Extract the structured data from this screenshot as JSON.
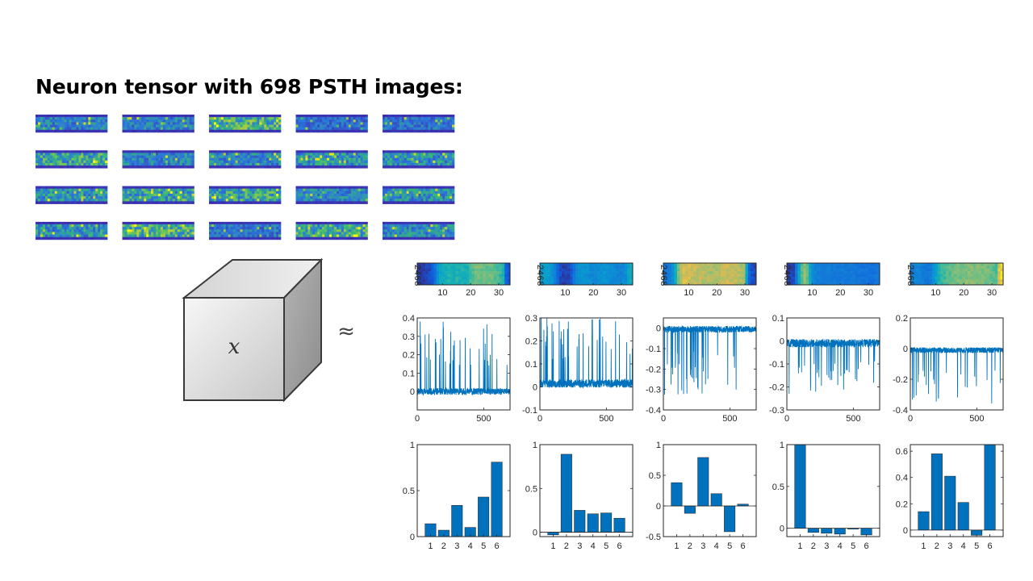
{
  "slide": {
    "title": "Neuron tensor with 698 PSTH images:",
    "tensor_symbol": "𝑥",
    "approx_symbol": "≈"
  },
  "psth_grid": {
    "rows": 4,
    "cols": 5
  },
  "colors": {
    "bar": "#0072BD",
    "line": "#0072BD",
    "axis": "#262626",
    "heatmap_low": "#3E26A8",
    "heatmap_mid": "#35B779",
    "heatmap_high": "#F9FB0E"
  },
  "chart_data": [
    {
      "component": 1,
      "heatmap": {
        "type": "heatmap",
        "yticks": [
          "2",
          "4",
          "6",
          "8"
        ],
        "xticks": [
          "10",
          "20",
          "30"
        ],
        "xlim": [
          1,
          34
        ],
        "column_profile": [
          0.05,
          0.05,
          0.06,
          0.08,
          0.1,
          0.15,
          0.28,
          0.45,
          0.55,
          0.58,
          0.6,
          0.62,
          0.62,
          0.62,
          0.63,
          0.62,
          0.62,
          0.6,
          0.62,
          0.68,
          0.72,
          0.75,
          0.75,
          0.75,
          0.74,
          0.74,
          0.75,
          0.75,
          0.72,
          0.7,
          0.66,
          0.62,
          0.2,
          0.12
        ]
      },
      "loading": {
        "type": "line",
        "xlim": [
          0,
          698
        ],
        "ylim": [
          -0.1,
          0.4
        ],
        "xticks": [
          "0",
          "500"
        ],
        "yticks": [
          "0",
          "0.1",
          "0.2",
          "0.3",
          "0.4"
        ],
        "baseline": 0.0,
        "noise": 0.018,
        "spike_dir": 1,
        "spike_max": 0.38,
        "spike_count": 38,
        "seed": 11
      },
      "weights": {
        "type": "bar",
        "categories": [
          "1",
          "2",
          "3",
          "4",
          "5",
          "6"
        ],
        "values": [
          0.14,
          0.07,
          0.34,
          0.1,
          0.43,
          0.81
        ],
        "ylim": [
          0,
          1
        ],
        "yticks": [
          "0",
          "0.5",
          "1"
        ]
      }
    },
    {
      "component": 2,
      "heatmap": {
        "type": "heatmap",
        "yticks": [
          "2",
          "4",
          "6",
          "8"
        ],
        "xticks": [
          "10",
          "20",
          "30"
        ],
        "xlim": [
          1,
          34
        ],
        "column_profile": [
          0.5,
          0.52,
          0.5,
          0.48,
          0.45,
          0.35,
          0.22,
          0.1,
          0.06,
          0.06,
          0.08,
          0.14,
          0.28,
          0.4,
          0.45,
          0.46,
          0.45,
          0.44,
          0.42,
          0.4,
          0.4,
          0.42,
          0.44,
          0.46,
          0.45,
          0.44,
          0.42,
          0.4,
          0.38,
          0.38,
          0.4,
          0.45,
          0.55,
          0.58
        ]
      },
      "loading": {
        "type": "line",
        "xlim": [
          0,
          698
        ],
        "ylim": [
          -0.1,
          0.3
        ],
        "xticks": [
          "0",
          "500"
        ],
        "yticks": [
          "-0.1",
          "0",
          "0.1",
          "0.2",
          "0.3"
        ],
        "baseline": 0.015,
        "noise": 0.018,
        "spike_dir": 1,
        "spike_max": 0.29,
        "spike_count": 44,
        "seed": 23
      },
      "weights": {
        "type": "bar",
        "categories": [
          "1",
          "2",
          "3",
          "4",
          "5",
          "6"
        ],
        "values": [
          -0.03,
          0.89,
          0.25,
          0.21,
          0.22,
          0.16
        ],
        "ylim": [
          -0.05,
          1
        ],
        "yticks": [
          "0",
          "0.5",
          "1"
        ]
      }
    },
    {
      "component": 3,
      "heatmap": {
        "type": "heatmap",
        "yticks": [
          "2",
          "4",
          "6",
          "8"
        ],
        "xticks": [
          "10",
          "20",
          "30"
        ],
        "xlim": [
          1,
          34
        ],
        "column_profile": [
          0.3,
          0.32,
          0.35,
          0.45,
          0.6,
          0.75,
          0.85,
          0.88,
          0.88,
          0.87,
          0.86,
          0.86,
          0.85,
          0.85,
          0.84,
          0.84,
          0.83,
          0.82,
          0.82,
          0.83,
          0.84,
          0.85,
          0.86,
          0.86,
          0.86,
          0.85,
          0.85,
          0.85,
          0.84,
          0.83,
          0.55,
          0.2,
          0.1,
          0.08
        ]
      },
      "loading": {
        "type": "line",
        "xlim": [
          0,
          698
        ],
        "ylim": [
          -0.4,
          0.05
        ],
        "xticks": [
          "0",
          "500"
        ],
        "yticks": [
          "0",
          "-0.1",
          "-0.2",
          "-0.3",
          "-0.4"
        ],
        "baseline": -0.005,
        "noise": 0.016,
        "spike_dir": -1,
        "spike_max": 0.32,
        "spike_count": 34,
        "seed": 37
      },
      "weights": {
        "type": "bar",
        "categories": [
          "1",
          "2",
          "3",
          "4",
          "5",
          "6"
        ],
        "values": [
          0.38,
          -0.12,
          0.79,
          0.2,
          -0.42,
          0.03
        ],
        "ylim": [
          -0.5,
          1
        ],
        "yticks": [
          "-0.5",
          "0",
          "0.5",
          "1"
        ]
      }
    },
    {
      "component": 4,
      "heatmap": {
        "type": "heatmap",
        "yticks": [
          "2",
          "4",
          "6",
          "8"
        ],
        "xticks": [
          "10",
          "20",
          "30"
        ],
        "xlim": [
          1,
          34
        ],
        "column_profile": [
          0.05,
          0.06,
          0.08,
          0.3,
          0.55,
          0.7,
          0.78,
          0.72,
          0.55,
          0.42,
          0.38,
          0.35,
          0.34,
          0.34,
          0.35,
          0.34,
          0.33,
          0.33,
          0.32,
          0.33,
          0.34,
          0.33,
          0.32,
          0.32,
          0.31,
          0.3,
          0.3,
          0.3,
          0.29,
          0.29,
          0.28,
          0.28,
          0.3,
          0.32
        ]
      },
      "loading": {
        "type": "line",
        "xlim": [
          0,
          698
        ],
        "ylim": [
          -0.3,
          0.1
        ],
        "xticks": [
          "0",
          "500"
        ],
        "yticks": [
          "-0.3",
          "-0.2",
          "-0.1",
          "0",
          "0.1"
        ],
        "baseline": -0.01,
        "noise": 0.018,
        "spike_dir": -1,
        "spike_max": 0.22,
        "spike_count": 36,
        "seed": 51
      },
      "weights": {
        "type": "bar",
        "categories": [
          "1",
          "2",
          "3",
          "4",
          "5",
          "6"
        ],
        "values": [
          1.0,
          -0.05,
          -0.06,
          -0.07,
          -0.01,
          -0.08
        ],
        "ylim": [
          -0.1,
          1
        ],
        "yticks": [
          "0",
          "0.5",
          "1"
        ]
      }
    },
    {
      "component": 5,
      "heatmap": {
        "type": "heatmap",
        "yticks": [
          "2",
          "4",
          "6",
          "8"
        ],
        "xticks": [
          "10",
          "20",
          "30"
        ],
        "xlim": [
          1,
          34
        ],
        "column_profile": [
          0.35,
          0.38,
          0.4,
          0.38,
          0.35,
          0.32,
          0.3,
          0.35,
          0.45,
          0.55,
          0.62,
          0.66,
          0.68,
          0.7,
          0.72,
          0.74,
          0.75,
          0.76,
          0.76,
          0.77,
          0.78,
          0.78,
          0.78,
          0.78,
          0.77,
          0.77,
          0.76,
          0.76,
          0.75,
          0.74,
          0.72,
          0.7,
          0.9,
          0.95
        ]
      },
      "loading": {
        "type": "line",
        "xlim": [
          0,
          698
        ],
        "ylim": [
          -0.4,
          0.2
        ],
        "xticks": [
          "0",
          "500"
        ],
        "yticks": [
          "-0.4",
          "-0.2",
          "0",
          "0.2"
        ],
        "baseline": -0.01,
        "noise": 0.018,
        "spike_dir": -1,
        "spike_max": 0.38,
        "spike_count": 30,
        "seed": 67
      },
      "weights": {
        "type": "bar",
        "categories": [
          "1",
          "2",
          "3",
          "4",
          "5",
          "6"
        ],
        "values": [
          0.14,
          0.58,
          0.41,
          0.21,
          -0.04,
          0.65
        ],
        "ylim": [
          -0.05,
          0.65
        ],
        "yticks": [
          "0",
          "0.2",
          "0.4",
          "0.6"
        ]
      }
    }
  ]
}
